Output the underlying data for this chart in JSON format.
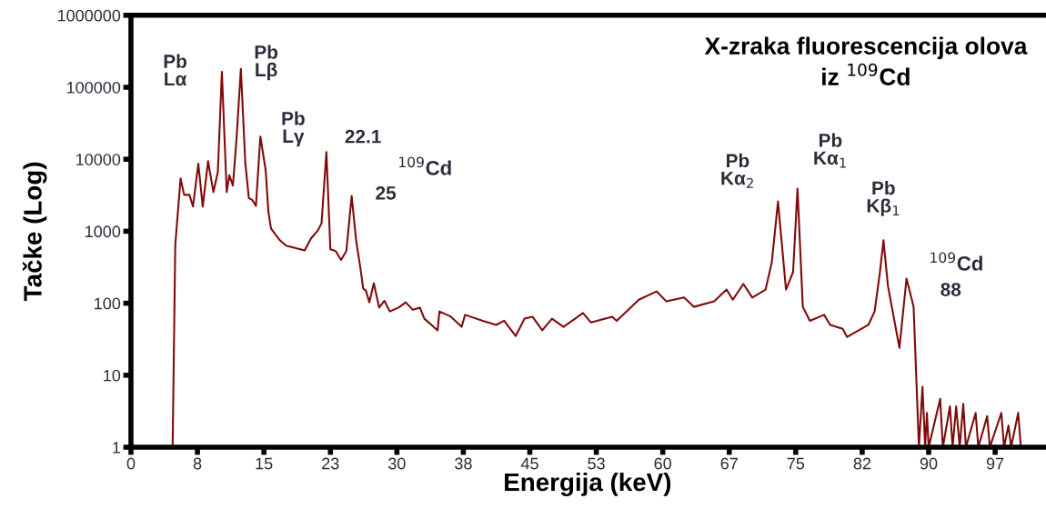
{
  "chart_data": {
    "type": "line",
    "title": "X-zraka fluorescencija olova\niz $^{109}$Cd",
    "xlabel": "Energija (keV)",
    "ylabel": "Tačke (Log)",
    "log": "y",
    "grid": false,
    "legend": false,
    "marker": "none",
    "line_style": "solid",
    "xlim": [
      0,
      103
    ],
    "ylim": [
      1,
      1000000
    ],
    "xticks": [
      0,
      {
        "value": 7.5,
        "label": "8"
      },
      15,
      {
        "value": 22.5,
        "label": "23"
      },
      30,
      {
        "value": 37.5,
        "label": "38"
      },
      45,
      {
        "value": 52.5,
        "label": "53"
      },
      60,
      {
        "value": 67.5,
        "label": "67"
      },
      75,
      {
        "value": 82.5,
        "label": "82"
      },
      90,
      {
        "value": 97.5,
        "label": "97"
      }
    ],
    "yticks": [
      1,
      10,
      100,
      1000,
      10000,
      100000,
      1000000
    ],
    "series": [
      {
        "color": "#7f0a0a",
        "x": [
          4.7,
          5.0,
          5.6,
          6.0,
          6.6,
          7.0,
          7.6,
          8.1,
          8.7,
          9.3,
          9.8,
          10.26,
          10.8,
          11.1,
          11.5,
          11.9,
          12.4,
          12.9,
          13.3,
          13.7,
          14.1,
          14.6,
          15.2,
          15.5,
          15.8,
          16.8,
          17.5,
          19.6,
          20.3,
          21.1,
          21.5,
          22.05,
          22.5,
          23.1,
          23.7,
          24.3,
          24.9,
          25.4,
          25.9,
          26.2,
          26.5,
          26.9,
          27.4,
          28.0,
          28.6,
          29.2,
          30.2,
          31.0,
          31.8,
          32.6,
          33.1,
          34.6,
          34.8,
          36.1,
          37.3,
          37.7,
          39.7,
          41.2,
          42.1,
          43.4,
          44.4,
          45.3,
          46.4,
          47.5,
          48.8,
          51.0,
          51.9,
          54.3,
          54.8,
          57.3,
          59.3,
          60.4,
          62.4,
          63.5,
          65.8,
          67.2,
          67.9,
          69.1,
          70.1,
          71.6,
          72.3,
          73.0,
          73.9,
          74.7,
          75.2,
          75.8,
          76.6,
          78.2,
          78.9,
          80.3,
          80.8,
          83.2,
          83.9,
          84.5,
          84.9,
          85.4,
          86.7,
          87.5,
          88.3,
          88.9,
          89.3,
          89.6,
          89.8,
          90.0,
          91.3,
          91.6,
          92.4,
          92.7,
          93.1,
          93.5,
          93.9,
          94.2,
          95.3,
          95.6,
          96.6,
          96.9,
          98.2,
          98.5,
          99.0,
          99.3,
          100.1,
          100.4
        ],
        "values": [
          1,
          650,
          5400,
          3200,
          3200,
          2200,
          8700,
          2200,
          9400,
          3500,
          6600,
          164000,
          3500,
          6000,
          4300,
          18500,
          180000,
          8900,
          2900,
          2700,
          2250,
          20700,
          7000,
          1900,
          1090,
          750,
          630,
          540,
          790,
          1030,
          1290,
          12600,
          560,
          530,
          400,
          530,
          3100,
          750,
          300,
          160,
          150,
          103,
          190,
          87,
          108,
          77,
          87,
          103,
          81,
          87,
          61,
          42,
          77,
          65,
          47,
          69,
          57,
          50,
          57,
          35,
          61,
          65,
          42,
          61,
          47,
          73,
          54,
          65,
          57,
          112,
          146,
          106,
          120,
          89,
          106,
          155,
          112,
          185,
          120,
          155,
          370,
          2600,
          155,
          270,
          3900,
          89,
          57,
          69,
          50,
          44,
          34,
          50,
          77,
          270,
          750,
          175,
          24,
          220,
          89,
          1,
          6.9,
          1,
          3,
          1,
          4.7,
          1,
          3.7,
          1,
          3.7,
          1,
          4,
          1,
          3,
          1,
          2.7,
          1,
          3,
          1,
          2,
          1,
          3,
          1
        ]
      }
    ],
    "annotations": [
      {
        "text": "Pb\nLα",
        "x": 10.26,
        "y": 164000
      },
      {
        "text": "Pb\nLβ",
        "x": 12.4,
        "y": 180000
      },
      {
        "text": "Pb\nLγ",
        "x": 14.6,
        "y": 20700
      },
      {
        "text": "22.1",
        "x": 22.05,
        "y": 12600
      },
      "$^{109}$Cd",
      {
        "text": "25",
        "x": 24.9,
        "y": 3100
      },
      {
        "text": "Pb\nKα$_{2}$",
        "x": 73.0,
        "y": 2600
      },
      {
        "text": "Pb\nKα$_{1}$",
        "x": 75.2,
        "y": 3900
      },
      {
        "text": "Pb\nKβ$_{1}$",
        "x": 84.9,
        "y": 750
      },
      "$^{109}$Cd",
      {
        "text": "88",
        "x": 87.5,
        "y": 220
      }
    ]
  }
}
